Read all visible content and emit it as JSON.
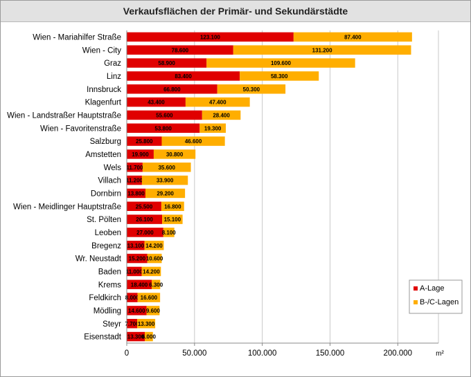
{
  "chart_data": {
    "type": "bar",
    "orientation": "horizontal",
    "stacked": true,
    "title": "Verkaufsflächen der Primär- und Sekundärstädte",
    "unit": "m²",
    "categories": [
      "Wien - Mariahilfer Straße",
      "Wien - City",
      "Graz",
      "Linz",
      "Innsbruck",
      "Klagenfurt",
      "Wien - Landstraßer Hauptstraße",
      "Wien - Favoritenstraße",
      "Salzburg",
      "Amstetten",
      "Wels",
      "Villach",
      "Dornbirn",
      "Wien - Meidlinger Hauptstraße",
      "St. Pölten",
      "Leoben",
      "Bregenz",
      "Wr. Neustadt",
      "Baden",
      "Krems",
      "Feldkirch",
      "Mödling",
      "Steyr",
      "Eisenstadt"
    ],
    "series": [
      {
        "name": "A-Lage",
        "color": "#e00000",
        "values": [
          123100,
          78600,
          58900,
          83400,
          66800,
          43400,
          55600,
          53800,
          25800,
          19900,
          11700,
          11200,
          13800,
          25500,
          26100,
          27000,
          13100,
          15200,
          11000,
          18400,
          8000,
          14600,
          7700,
          13300
        ],
        "labels": [
          "123.100",
          "78.600",
          "58.900",
          "83.400",
          "66.800",
          "43.400",
          "55.600",
          "53.800",
          "25.800",
          "19.900",
          "11.700",
          "11.200",
          "13.800",
          "25.500",
          "26.100",
          "27.000",
          "13.100",
          "15.200",
          "11.000",
          "18.400",
          "8.000",
          "14.600",
          "7.700",
          "13.300"
        ]
      },
      {
        "name": "B-/C-Lagen",
        "color": "#ffae00",
        "values": [
          87400,
          131200,
          109600,
          58300,
          50300,
          47400,
          28400,
          19300,
          46600,
          30800,
          35600,
          33900,
          29200,
          16800,
          15100,
          8100,
          14200,
          10600,
          14200,
          6300,
          16600,
          9600,
          13300,
          6000
        ],
        "labels": [
          "87.400",
          "131.200",
          "109.600",
          "58.300",
          "50.300",
          "47.400",
          "28.400",
          "19.300",
          "46.600",
          "30.800",
          "35.600",
          "33.900",
          "29.200",
          "16.800",
          "15.100",
          "8.100",
          "14.200",
          "10.600",
          "14.200",
          "6.300",
          "16.600",
          "9.600",
          "13.300",
          "6.000"
        ]
      }
    ],
    "xlim": [
      0,
      230000
    ],
    "xticks": [
      0,
      50000,
      100000,
      150000,
      200000
    ],
    "xtick_labels": [
      "0",
      "50.000",
      "100.000",
      "150.000",
      "200.000"
    ],
    "grid": true,
    "legend_position": "bottom-right"
  }
}
